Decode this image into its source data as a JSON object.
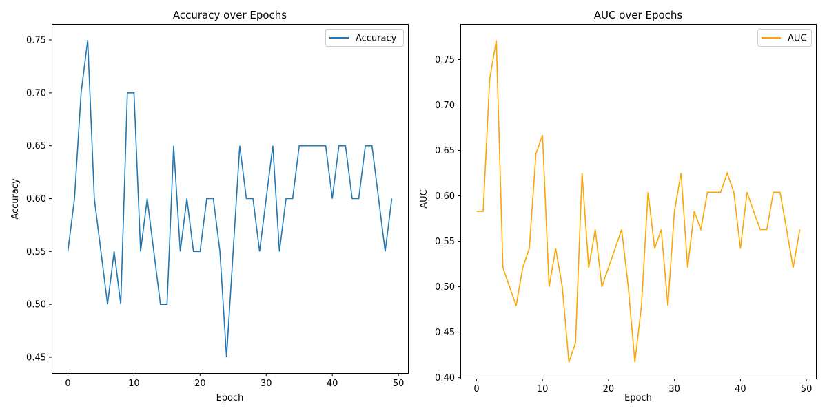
{
  "chart_data": [
    {
      "type": "line",
      "title": "Accuracy over Epochs",
      "xlabel": "Epoch",
      "ylabel": "Accuracy",
      "xlim": [
        -2.45,
        51.45
      ],
      "ylim": [
        0.435,
        0.765
      ],
      "xticks": [
        0,
        10,
        20,
        30,
        40,
        50
      ],
      "yticks": [
        0.45,
        0.5,
        0.55,
        0.6,
        0.65,
        0.7,
        0.75
      ],
      "ytick_labels": [
        "0.45",
        "0.50",
        "0.55",
        "0.60",
        "0.65",
        "0.70",
        "0.75"
      ],
      "legend": "top-right",
      "grid": false,
      "series": [
        {
          "name": "Accuracy",
          "color": "#1f77b4",
          "x": [
            0,
            1,
            2,
            3,
            4,
            5,
            6,
            7,
            8,
            9,
            10,
            11,
            12,
            13,
            14,
            15,
            16,
            17,
            18,
            19,
            20,
            21,
            22,
            23,
            24,
            25,
            26,
            27,
            28,
            29,
            30,
            31,
            32,
            33,
            34,
            35,
            36,
            37,
            38,
            39,
            40,
            41,
            42,
            43,
            44,
            45,
            46,
            47,
            48,
            49
          ],
          "values": [
            0.55,
            0.6,
            0.7,
            0.75,
            0.6,
            0.55,
            0.5,
            0.55,
            0.5,
            0.7,
            0.7,
            0.55,
            0.6,
            0.55,
            0.5,
            0.5,
            0.65,
            0.55,
            0.6,
            0.55,
            0.55,
            0.6,
            0.6,
            0.55,
            0.45,
            0.55,
            0.65,
            0.6,
            0.6,
            0.55,
            0.6,
            0.65,
            0.55,
            0.6,
            0.6,
            0.65,
            0.65,
            0.65,
            0.65,
            0.65,
            0.6,
            0.65,
            0.65,
            0.6,
            0.6,
            0.65,
            0.65,
            0.6,
            0.55,
            0.6
          ]
        }
      ]
    },
    {
      "type": "line",
      "title": "AUC over Epochs",
      "xlabel": "Epoch",
      "ylabel": "AUC",
      "xlim": [
        -2.45,
        51.45
      ],
      "ylim": [
        0.399,
        0.789
      ],
      "xticks": [
        0,
        10,
        20,
        30,
        40,
        50
      ],
      "yticks": [
        0.4,
        0.45,
        0.5,
        0.55,
        0.6,
        0.65,
        0.7,
        0.75
      ],
      "ytick_labels": [
        "0.40",
        "0.45",
        "0.50",
        "0.55",
        "0.60",
        "0.65",
        "0.70",
        "0.75"
      ],
      "legend": "top-right",
      "grid": false,
      "series": [
        {
          "name": "AUC",
          "color": "#ffa500",
          "x": [
            0,
            1,
            2,
            3,
            4,
            5,
            6,
            7,
            8,
            9,
            10,
            11,
            12,
            13,
            14,
            15,
            16,
            17,
            18,
            19,
            20,
            21,
            22,
            23,
            24,
            25,
            26,
            27,
            28,
            29,
            30,
            31,
            32,
            33,
            34,
            35,
            36,
            37,
            38,
            39,
            40,
            41,
            42,
            43,
            44,
            45,
            46,
            47,
            48,
            49
          ],
          "values": [
            0.583,
            0.583,
            0.729,
            0.771,
            0.521,
            0.5,
            0.479,
            0.521,
            0.542,
            0.646,
            0.667,
            0.5,
            0.542,
            0.5,
            0.417,
            0.438,
            0.625,
            0.521,
            0.563,
            0.5,
            0.521,
            0.542,
            0.563,
            0.5,
            0.417,
            0.479,
            0.604,
            0.542,
            0.563,
            0.479,
            0.583,
            0.625,
            0.521,
            0.583,
            0.563,
            0.604,
            0.604,
            0.604,
            0.625,
            0.604,
            0.542,
            0.604,
            0.583,
            0.563,
            0.563,
            0.604,
            0.604,
            0.563,
            0.521,
            0.563
          ]
        }
      ]
    }
  ]
}
